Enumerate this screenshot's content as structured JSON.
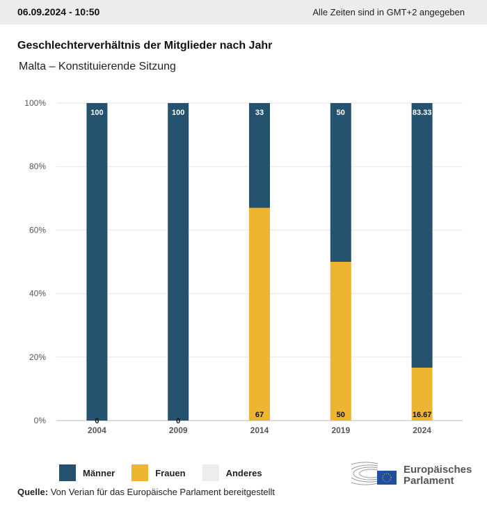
{
  "header": {
    "datetime": "06.09.2024 - 10:50",
    "timezone_note": "Alle Zeiten sind in GMT+2 angegeben"
  },
  "chart_data": {
    "type": "bar",
    "stacked": true,
    "title": "Geschlechterverhältnis der Mitglieder nach Jahr",
    "subtitle": "Malta – Konstituierende Sitzung",
    "categories": [
      "2004",
      "2009",
      "2014",
      "2019",
      "2024"
    ],
    "series": [
      {
        "name": "Männer",
        "color": "#25526f",
        "values": [
          100,
          100,
          33,
          50,
          83.33
        ],
        "labels": [
          "100",
          "100",
          "33",
          "50",
          "83.33"
        ]
      },
      {
        "name": "Frauen",
        "color": "#eeb533",
        "values": [
          0,
          0,
          67,
          50,
          16.67
        ],
        "labels": [
          "0",
          "0",
          "67",
          "50",
          "16.67"
        ]
      },
      {
        "name": "Anderes",
        "color": "#ededee",
        "values": [
          0,
          0,
          0,
          0,
          0
        ]
      }
    ],
    "yticks": [
      "0%",
      "20%",
      "40%",
      "60%",
      "80%",
      "100%"
    ],
    "ylim": [
      0,
      100
    ],
    "grid": true,
    "legend": "bottom-left"
  },
  "footer": {
    "source_label": "Quelle:",
    "source_text": "Von Verian für das Europäische Parlament bereitgestellt",
    "logo_text": [
      "Europäisches",
      "Parlament"
    ]
  }
}
